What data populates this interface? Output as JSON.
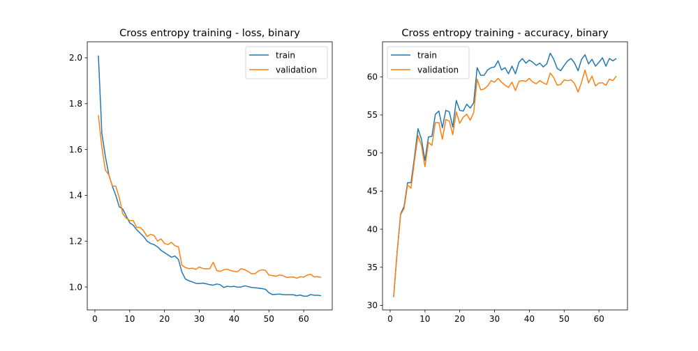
{
  "chart_data": [
    {
      "type": "line",
      "title": "Cross entropy training - loss, binary",
      "xlabel": "",
      "ylabel": "",
      "xlim": [
        -2.2,
        68.2
      ],
      "ylim": [
        0.9,
        2.07
      ],
      "xticks": [
        0,
        10,
        20,
        30,
        40,
        50,
        60
      ],
      "yticks": [
        1.0,
        1.2,
        1.4,
        1.6,
        1.8,
        2.0
      ],
      "ytick_labels": [
        "1.0",
        "1.2",
        "1.4",
        "1.6",
        "1.8",
        "2.0"
      ],
      "legend": "top-right",
      "grid": false,
      "x": [
        1,
        2,
        3,
        4,
        5,
        6,
        7,
        8,
        9,
        10,
        11,
        12,
        13,
        14,
        15,
        16,
        17,
        18,
        19,
        20,
        21,
        22,
        23,
        24,
        25,
        26,
        27,
        28,
        29,
        30,
        31,
        32,
        33,
        34,
        35,
        36,
        37,
        38,
        39,
        40,
        41,
        42,
        43,
        44,
        45,
        46,
        47,
        48,
        49,
        50,
        51,
        52,
        53,
        54,
        55,
        56,
        57,
        58,
        59,
        60,
        61,
        62,
        63,
        64,
        65
      ],
      "series": [
        {
          "name": "train",
          "color": "#1f77b4",
          "values": [
            2.01,
            1.67,
            1.57,
            1.49,
            1.44,
            1.4,
            1.35,
            1.34,
            1.31,
            1.28,
            1.27,
            1.25,
            1.235,
            1.22,
            1.2,
            1.19,
            1.185,
            1.175,
            1.16,
            1.15,
            1.14,
            1.13,
            1.135,
            1.12,
            1.065,
            1.035,
            1.027,
            1.022,
            1.016,
            1.015,
            1.017,
            1.014,
            1.01,
            1.008,
            1.013,
            1.01,
            0.998,
            1.003,
            1.001,
            1.003,
            0.999,
            1.0,
            1.005,
            1.002,
            0.998,
            0.997,
            0.995,
            0.993,
            0.99,
            0.975,
            0.967,
            0.968,
            0.969,
            0.967,
            0.966,
            0.966,
            0.966,
            0.962,
            0.965,
            0.96,
            0.96,
            0.967,
            0.964,
            0.964,
            0.962
          ]
        },
        {
          "name": "validation",
          "color": "#ff7f0e",
          "values": [
            1.75,
            1.61,
            1.51,
            1.49,
            1.44,
            1.44,
            1.39,
            1.32,
            1.3,
            1.29,
            1.29,
            1.26,
            1.26,
            1.245,
            1.22,
            1.23,
            1.225,
            1.2,
            1.21,
            1.19,
            1.185,
            1.195,
            1.18,
            1.175,
            1.095,
            1.085,
            1.08,
            1.082,
            1.077,
            1.087,
            1.081,
            1.079,
            1.08,
            1.108,
            1.072,
            1.068,
            1.075,
            1.078,
            1.072,
            1.068,
            1.067,
            1.08,
            1.076,
            1.068,
            1.058,
            1.058,
            1.07,
            1.075,
            1.073,
            1.052,
            1.05,
            1.047,
            1.052,
            1.05,
            1.042,
            1.043,
            1.044,
            1.038,
            1.045,
            1.043,
            1.052,
            1.055,
            1.044,
            1.045,
            1.042
          ]
        }
      ]
    },
    {
      "type": "line",
      "title": "Cross entropy training - accuracy, binary",
      "xlabel": "",
      "ylabel": "",
      "xlim": [
        -2.2,
        68.2
      ],
      "ylim": [
        29.4,
        64.6
      ],
      "xticks": [
        0,
        10,
        20,
        30,
        40,
        50,
        60
      ],
      "yticks": [
        30,
        35,
        40,
        45,
        50,
        55,
        60
      ],
      "ytick_labels": [
        "30",
        "35",
        "40",
        "45",
        "50",
        "55",
        "60"
      ],
      "legend": "top-left",
      "grid": false,
      "x": [
        1,
        2,
        3,
        4,
        5,
        6,
        7,
        8,
        9,
        10,
        11,
        12,
        13,
        14,
        15,
        16,
        17,
        18,
        19,
        20,
        21,
        22,
        23,
        24,
        25,
        26,
        27,
        28,
        29,
        30,
        31,
        32,
        33,
        34,
        35,
        36,
        37,
        38,
        39,
        40,
        41,
        42,
        43,
        44,
        45,
        46,
        47,
        48,
        49,
        50,
        51,
        52,
        53,
        54,
        55,
        56,
        57,
        58,
        59,
        60,
        61,
        62,
        63,
        64,
        65
      ],
      "series": [
        {
          "name": "train",
          "color": "#1f77b4",
          "values": [
            31.1,
            37.0,
            42.0,
            43.0,
            46.1,
            46.1,
            49.5,
            53.2,
            51.8,
            49.0,
            52.1,
            52.2,
            55.1,
            55.5,
            53.3,
            55.6,
            55.4,
            53.4,
            56.9,
            55.6,
            55.5,
            56.4,
            55.9,
            56.6,
            61.2,
            60.2,
            60.2,
            60.9,
            61.2,
            61.3,
            62.1,
            60.9,
            61.2,
            60.4,
            61.4,
            60.4,
            61.9,
            62.4,
            61.8,
            62.2,
            61.9,
            61.5,
            61.8,
            61.3,
            61.7,
            63.1,
            62.3,
            61.1,
            60.8,
            61.5,
            62.1,
            62.4,
            61.8,
            60.8,
            62.3,
            62.9,
            61.7,
            62.3,
            61.4,
            61.9,
            62.5,
            61.4,
            62.4,
            62.1,
            62.4
          ]
        },
        {
          "name": "validation",
          "color": "#ff7f0e",
          "values": [
            31.1,
            36.9,
            41.9,
            42.7,
            45.8,
            45.4,
            49.0,
            52.3,
            51.0,
            48.2,
            51.4,
            51.0,
            54.0,
            54.0,
            51.8,
            54.4,
            54.2,
            52.4,
            55.4,
            53.9,
            54.7,
            55.1,
            54.3,
            55.3,
            59.7,
            58.3,
            58.4,
            58.8,
            59.5,
            59.3,
            59.8,
            59.3,
            58.9,
            58.6,
            59.3,
            58.2,
            59.4,
            59.5,
            59.4,
            59.8,
            59.3,
            59.1,
            59.5,
            59.2,
            59.0,
            60.5,
            59.9,
            58.9,
            59.0,
            59.6,
            59.5,
            59.6,
            59.1,
            58.0,
            59.3,
            60.9,
            59.2,
            60.1,
            58.8,
            59.2,
            59.2,
            58.9,
            59.7,
            59.5,
            60.1
          ]
        }
      ]
    }
  ]
}
